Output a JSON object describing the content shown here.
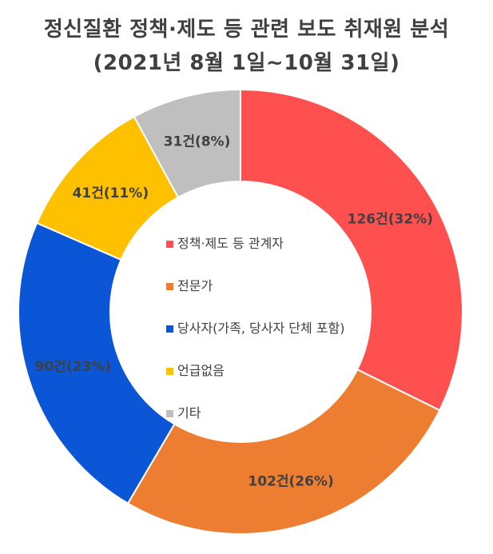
{
  "title_line1": "정신질환 정책·제도 등 관련 보도 취재원 분석",
  "title_line2": "(2021년 8월 1일~10월 31일)",
  "chart_data": {
    "type": "pie",
    "style": "donut",
    "title": "정신질환 정책·제도 등 관련 보도 취재원 분석 (2021년 8월 1일~10월 31일)",
    "categories": [
      "정책·제도 등 관계자",
      "전문가",
      "당사자(가족, 당사자 단체 포함)",
      "언급없음",
      "기타"
    ],
    "values": [
      126,
      102,
      90,
      41,
      31
    ],
    "percents": [
      32,
      26,
      23,
      11,
      8
    ],
    "data_labels": [
      "126건(32%)",
      "102건(26%)",
      "90건(23%)",
      "41건(11%)",
      "31건(8%)"
    ],
    "colors": [
      "#FF5050",
      "#ED7D31",
      "#0B56D6",
      "#FFC000",
      "#BFBFBF"
    ],
    "start": "12 o'clock",
    "direction": "clockwise",
    "legend_placement": "center"
  }
}
